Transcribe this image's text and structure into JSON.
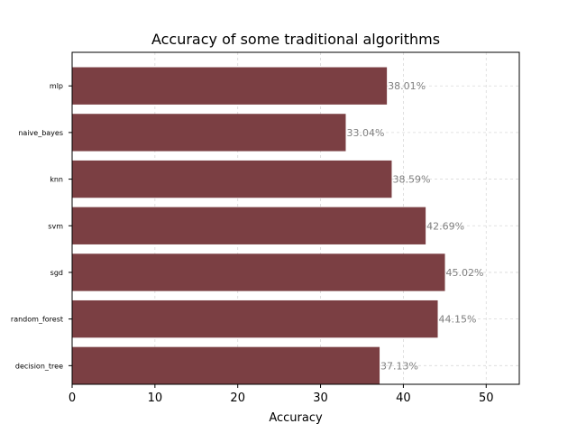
{
  "chart_data": {
    "type": "bar",
    "orientation": "horizontal",
    "title": "Accuracy of some traditional algorithms",
    "xlabel": "Accuracy",
    "ylabel": "",
    "categories": [
      "mlp",
      "naive_bayes",
      "knn",
      "svm",
      "sgd",
      "random_forest",
      "decision_tree"
    ],
    "values": [
      38.01,
      33.04,
      38.59,
      42.69,
      45.02,
      44.15,
      37.13
    ],
    "data_labels": [
      "38.01%",
      "33.04%",
      "38.59%",
      "42.69%",
      "45.02%",
      "44.15%",
      "37.13%"
    ],
    "xlim": [
      0,
      54
    ],
    "xticks": [
      0,
      10,
      20,
      30,
      40,
      50
    ],
    "grid": true,
    "bar_color": "#7b3f43",
    "label_color": "#808080"
  }
}
